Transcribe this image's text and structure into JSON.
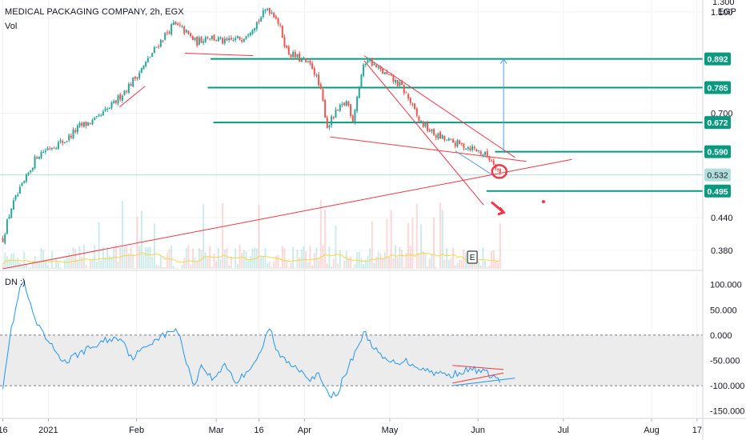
{
  "header": {
    "title": "MEDICAL PACKAGING COMPANY, 2h, EGX",
    "volume_label": "Vol",
    "indicator_label": "DN :)",
    "currency": "EGP"
  },
  "event_marker": "E",
  "colors": {
    "up": "#26a69a",
    "down": "#ef5350",
    "trendline": "#f23645",
    "level_line": "#089981",
    "level_badge": "#089981",
    "current_badge": "#b2dfdb",
    "indicator_line": "#2196f3",
    "volume_ma": "#f5d742",
    "band_fill": "#ececec",
    "grid": "#f0f3fa",
    "target_arrow": "#5b9bd5"
  },
  "chart_data": [
    {
      "type": "candlestick",
      "title": "MEDICAL PACKAGING COMPANY, 2h, EGX",
      "unit": "EGP",
      "x_ticks": [
        "16",
        "2021",
        "Feb",
        "Mar",
        "16",
        "Apr",
        "May",
        "Jun",
        "Jul",
        "Aug",
        "17"
      ],
      "x_tick_days": [
        0,
        16,
        47,
        75,
        90,
        106,
        136,
        167,
        197,
        228,
        244
      ],
      "xlim": [
        -1,
        246
      ],
      "ylim": [
        0.35,
        1.16
      ],
      "y_ticks": [
        0.38,
        0.44,
        0.7,
        1.1
      ],
      "y_tick_labels": [
        "0.380",
        "0.440",
        "0.700",
        "1.100"
      ],
      "top_label_partial": "1.300",
      "price_levels": [
        {
          "label": "0.892",
          "value": 0.892,
          "from_day": 73
        },
        {
          "label": "0.785",
          "value": 0.785,
          "from_day": 72
        },
        {
          "label": "0.672",
          "value": 0.672,
          "from_day": 74
        },
        {
          "label": "0.590",
          "value": 0.59,
          "from_day": 173
        },
        {
          "label": "0.495",
          "value": 0.495,
          "from_day": 170
        }
      ],
      "last_price": {
        "label": "0.532",
        "value": 0.532
      },
      "price_path_keypoints": [
        [
          0,
          0.4
        ],
        [
          3,
          0.46
        ],
        [
          8,
          0.52
        ],
        [
          12,
          0.58
        ],
        [
          16,
          0.6
        ],
        [
          22,
          0.62
        ],
        [
          27,
          0.66
        ],
        [
          33,
          0.68
        ],
        [
          39,
          0.73
        ],
        [
          45,
          0.8
        ],
        [
          50,
          0.87
        ],
        [
          55,
          0.96
        ],
        [
          60,
          1.04
        ],
        [
          63,
          1.02
        ],
        [
          68,
          0.96
        ],
        [
          72,
          0.99
        ],
        [
          78,
          0.96
        ],
        [
          84,
          0.98
        ],
        [
          90,
          1.06
        ],
        [
          93,
          1.12
        ],
        [
          96,
          1.08
        ],
        [
          100,
          0.92
        ],
        [
          106,
          0.88
        ],
        [
          109,
          0.86
        ],
        [
          112,
          0.76
        ],
        [
          114,
          0.66
        ],
        [
          117,
          0.7
        ],
        [
          121,
          0.74
        ],
        [
          123,
          0.68
        ],
        [
          126,
          0.83
        ],
        [
          128,
          0.9
        ],
        [
          131,
          0.86
        ],
        [
          136,
          0.82
        ],
        [
          140,
          0.79
        ],
        [
          143,
          0.74
        ],
        [
          146,
          0.68
        ],
        [
          151,
          0.64
        ],
        [
          156,
          0.62
        ],
        [
          160,
          0.61
        ],
        [
          165,
          0.6
        ],
        [
          170,
          0.58
        ],
        [
          173,
          0.56
        ],
        [
          175,
          0.53
        ]
      ],
      "trendlines": [
        {
          "from": [
            0,
            0.35
          ],
          "to": [
            200,
            0.57
          ]
        },
        {
          "from": [
            115,
            0.63
          ],
          "to": [
            184,
            0.565
          ]
        },
        {
          "from": [
            127,
            0.905
          ],
          "to": [
            180,
            0.575
          ]
        },
        {
          "from": [
            127,
            0.885
          ],
          "to": [
            169,
            0.465
          ]
        },
        {
          "from": [
            64,
            0.915
          ],
          "to": [
            88,
            0.905
          ]
        },
        {
          "from": [
            41,
            0.72
          ],
          "to": [
            50,
            0.79
          ]
        }
      ],
      "annotations": [
        {
          "type": "circle",
          "at": [
            174.5,
            0.54
          ]
        },
        {
          "type": "arrow",
          "from": [
            172,
            0.47
          ],
          "to": [
            176,
            0.45
          ]
        },
        {
          "type": "dot",
          "at": [
            190,
            0.472
          ]
        },
        {
          "type": "target_arrow",
          "x": 176,
          "from": 0.59,
          "to": 0.892
        },
        {
          "type": "pointer_line",
          "from": [
            159,
            0.592
          ],
          "to": [
            172,
            0.532
          ]
        }
      ]
    },
    {
      "type": "line",
      "title": "DN :)",
      "xlim": [
        -1,
        246
      ],
      "ylim": [
        -160,
        120
      ],
      "y_ticks": [
        100,
        50,
        0,
        -50,
        -100,
        -150
      ],
      "y_tick_labels": [
        "100.000",
        "50.000",
        "0.000",
        "-50.000",
        "-100.000",
        "-150.000"
      ],
      "band": [
        -100,
        0
      ],
      "keypoints": [
        [
          0,
          -100
        ],
        [
          2,
          -20
        ],
        [
          4,
          40
        ],
        [
          6,
          90
        ],
        [
          7,
          110
        ],
        [
          9,
          70
        ],
        [
          12,
          20
        ],
        [
          16,
          -15
        ],
        [
          22,
          -55
        ],
        [
          27,
          -35
        ],
        [
          33,
          -20
        ],
        [
          36,
          -10
        ],
        [
          42,
          -5
        ],
        [
          45,
          -45
        ],
        [
          49,
          -30
        ],
        [
          54,
          -5
        ],
        [
          58,
          2
        ],
        [
          61,
          15
        ],
        [
          64,
          -40
        ],
        [
          67,
          -100
        ],
        [
          70,
          -60
        ],
        [
          74,
          -90
        ],
        [
          78,
          -55
        ],
        [
          82,
          -95
        ],
        [
          86,
          -70
        ],
        [
          90,
          -40
        ],
        [
          94,
          15
        ],
        [
          96,
          -30
        ],
        [
          100,
          -55
        ],
        [
          104,
          -65
        ],
        [
          108,
          -85
        ],
        [
          111,
          -80
        ],
        [
          114,
          -115
        ],
        [
          117,
          -120
        ],
        [
          121,
          -70
        ],
        [
          124,
          -30
        ],
        [
          127,
          5
        ],
        [
          130,
          -20
        ],
        [
          133,
          -45
        ],
        [
          137,
          -55
        ],
        [
          141,
          -50
        ],
        [
          145,
          -60
        ],
        [
          149,
          -70
        ],
        [
          153,
          -75
        ],
        [
          157,
          -80
        ],
        [
          161,
          -72
        ],
        [
          166,
          -68
        ],
        [
          170,
          -75
        ],
        [
          175,
          -90
        ]
      ],
      "trendlines": [
        {
          "from": [
            158,
            -60
          ],
          "to": [
            176,
            -68
          ]
        },
        {
          "from": [
            158,
            -95
          ],
          "to": [
            176,
            -75
          ]
        },
        {
          "from": [
            158,
            -100
          ],
          "to": [
            180,
            -85
          ]
        }
      ]
    }
  ]
}
